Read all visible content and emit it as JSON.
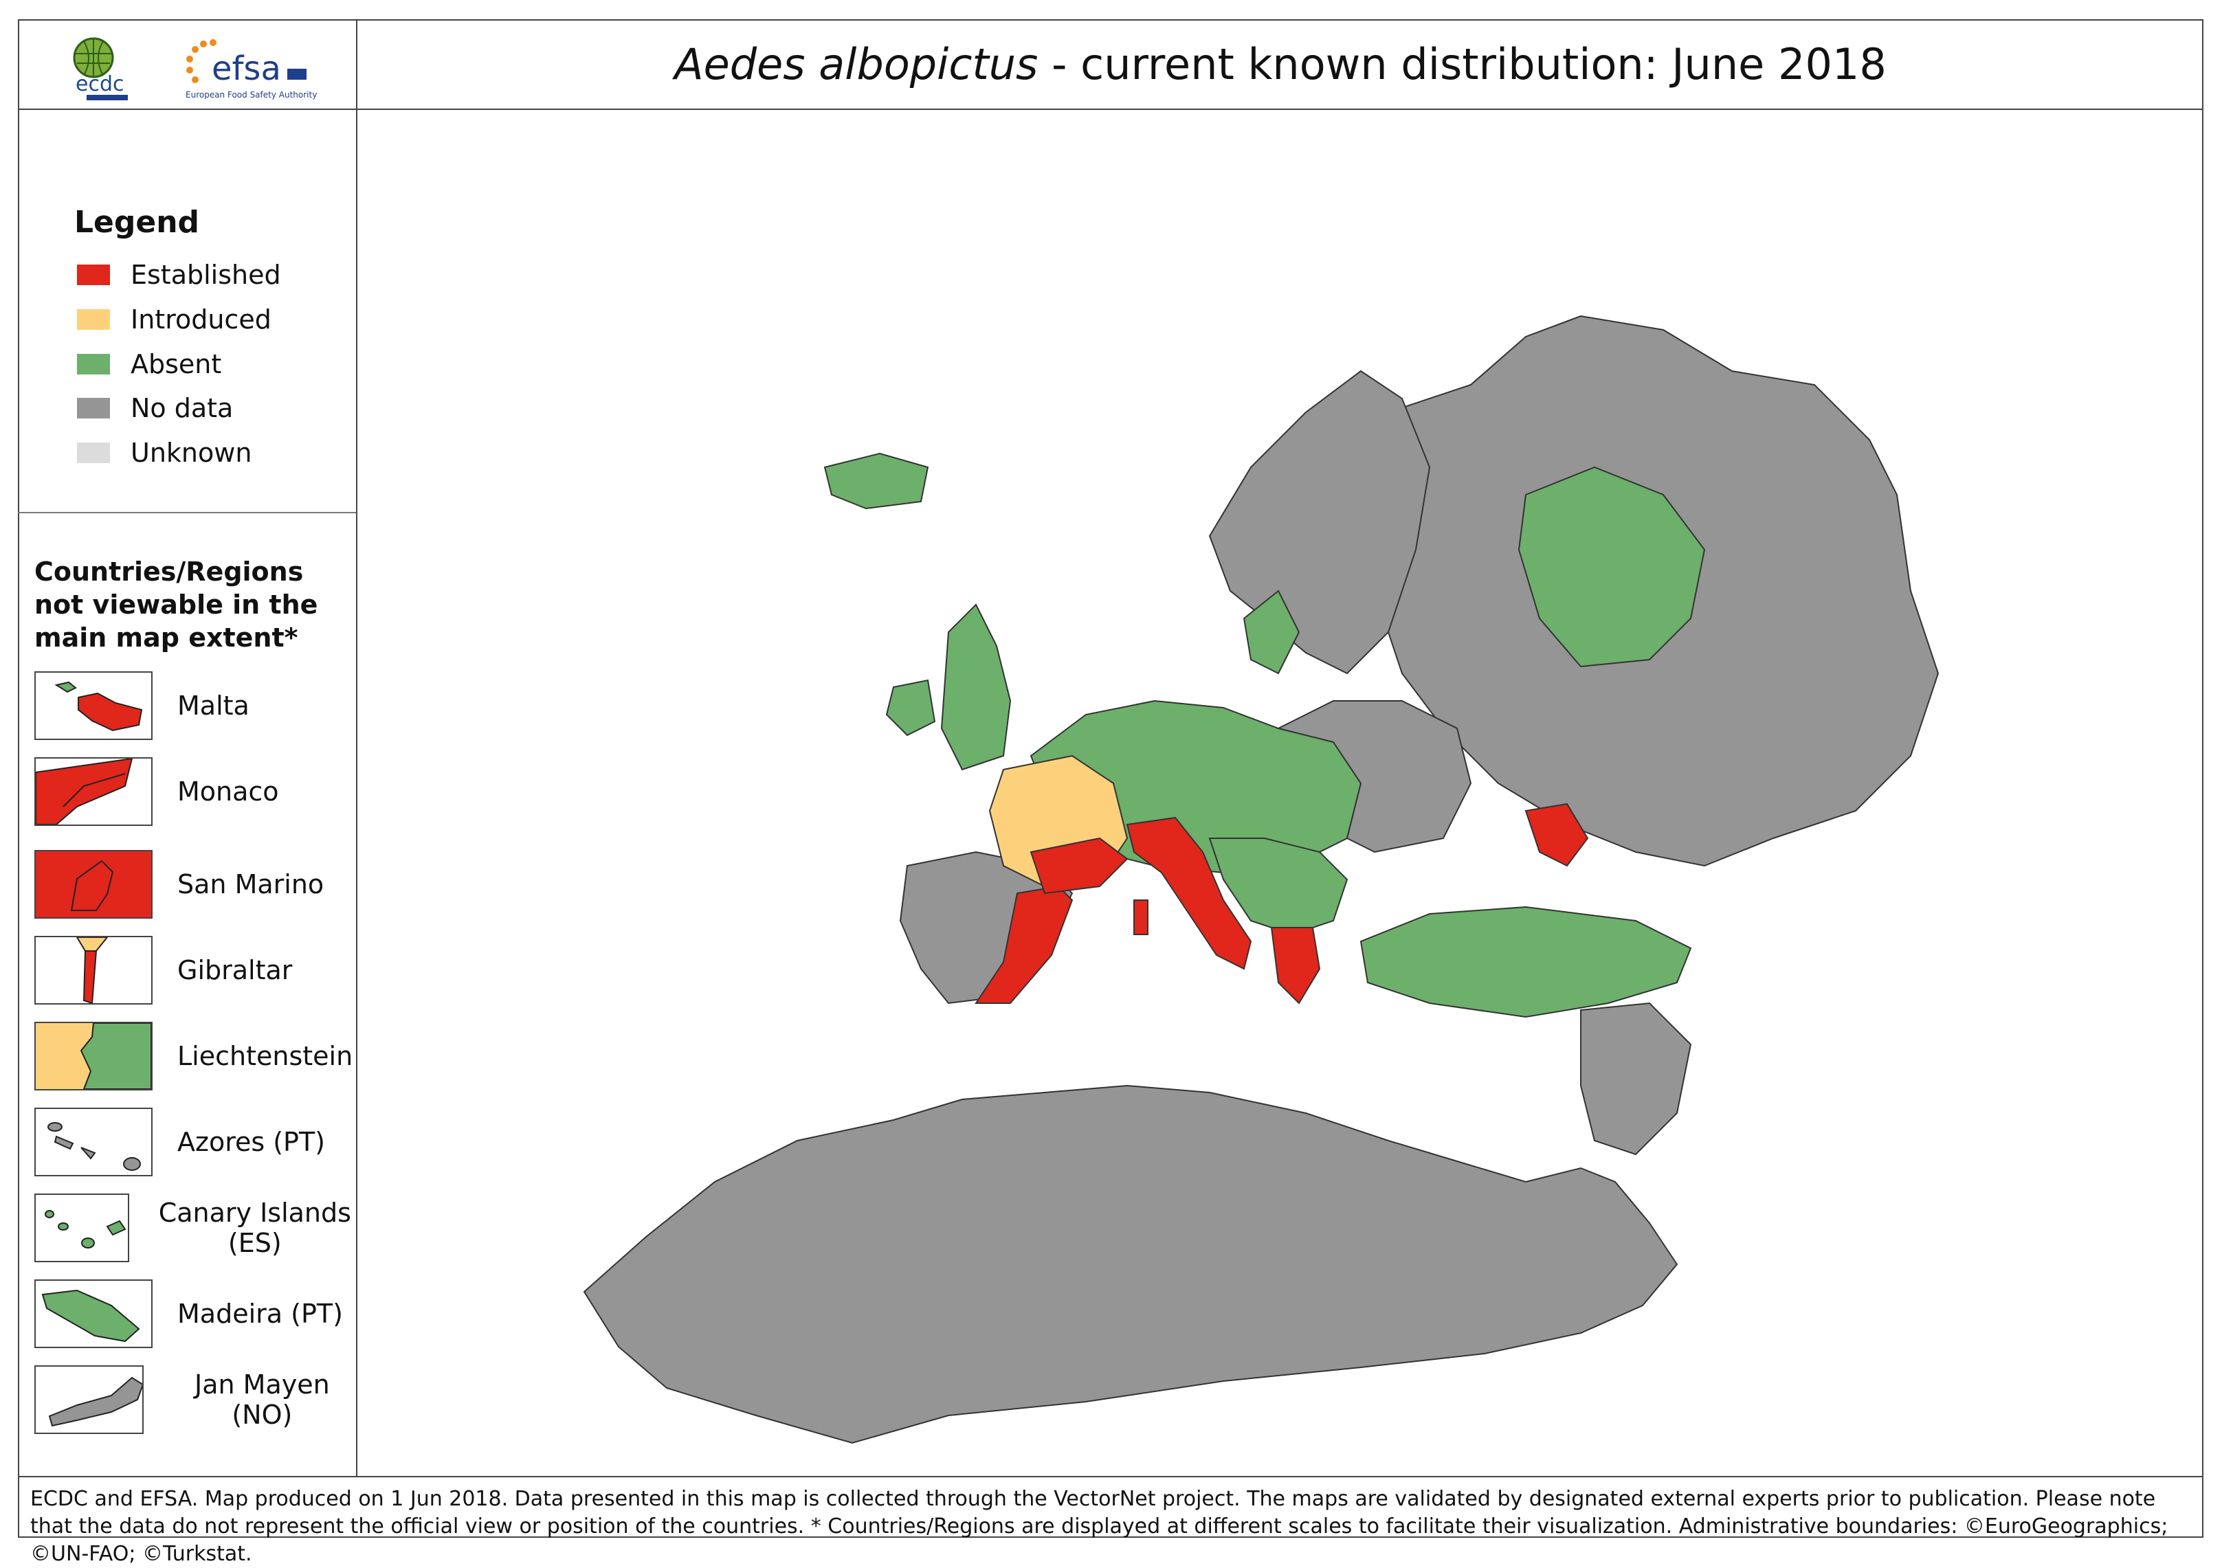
{
  "title": {
    "species": "Aedes albopictus",
    "rest": " - current known distribution: June 2018"
  },
  "logos": {
    "ecdc": "ecdc",
    "efsa": "efsa",
    "efsa_sub": "European Food Safety Authority"
  },
  "legend": {
    "title": "Legend",
    "items": [
      {
        "label": "Established",
        "color": "#e1261c"
      },
      {
        "label": "Introduced",
        "color": "#fdd17c"
      },
      {
        "label": "Absent",
        "color": "#6cb06b"
      },
      {
        "label": "No data",
        "color": "#959595"
      },
      {
        "label": "Unknown",
        "color": "#dcdcdc"
      }
    ]
  },
  "extent": {
    "title": "Countries/Regions not viewable in the main map extent*",
    "insets": [
      {
        "label": "Malta"
      },
      {
        "label": "Monaco"
      },
      {
        "label": "San Marino"
      },
      {
        "label": "Gibraltar"
      },
      {
        "label": "Liechtenstein"
      },
      {
        "label": "Azores (PT)"
      },
      {
        "label": "Canary Islands (ES)"
      },
      {
        "label": "Madeira (PT)"
      },
      {
        "label": "Jan Mayen (NO)"
      }
    ]
  },
  "footer": "ECDC and EFSA. Map produced on 1 Jun 2018. Data presented in this map is collected through the VectorNet project. The maps are validated by designated external experts prior to publication. Please note that the data do not represent the official view or position of the countries. * Countries/Regions are displayed at different scales to facilitate their visualization. Administrative boundaries: ©EuroGeographics; ©UN-FAO; ©Turkstat."
}
